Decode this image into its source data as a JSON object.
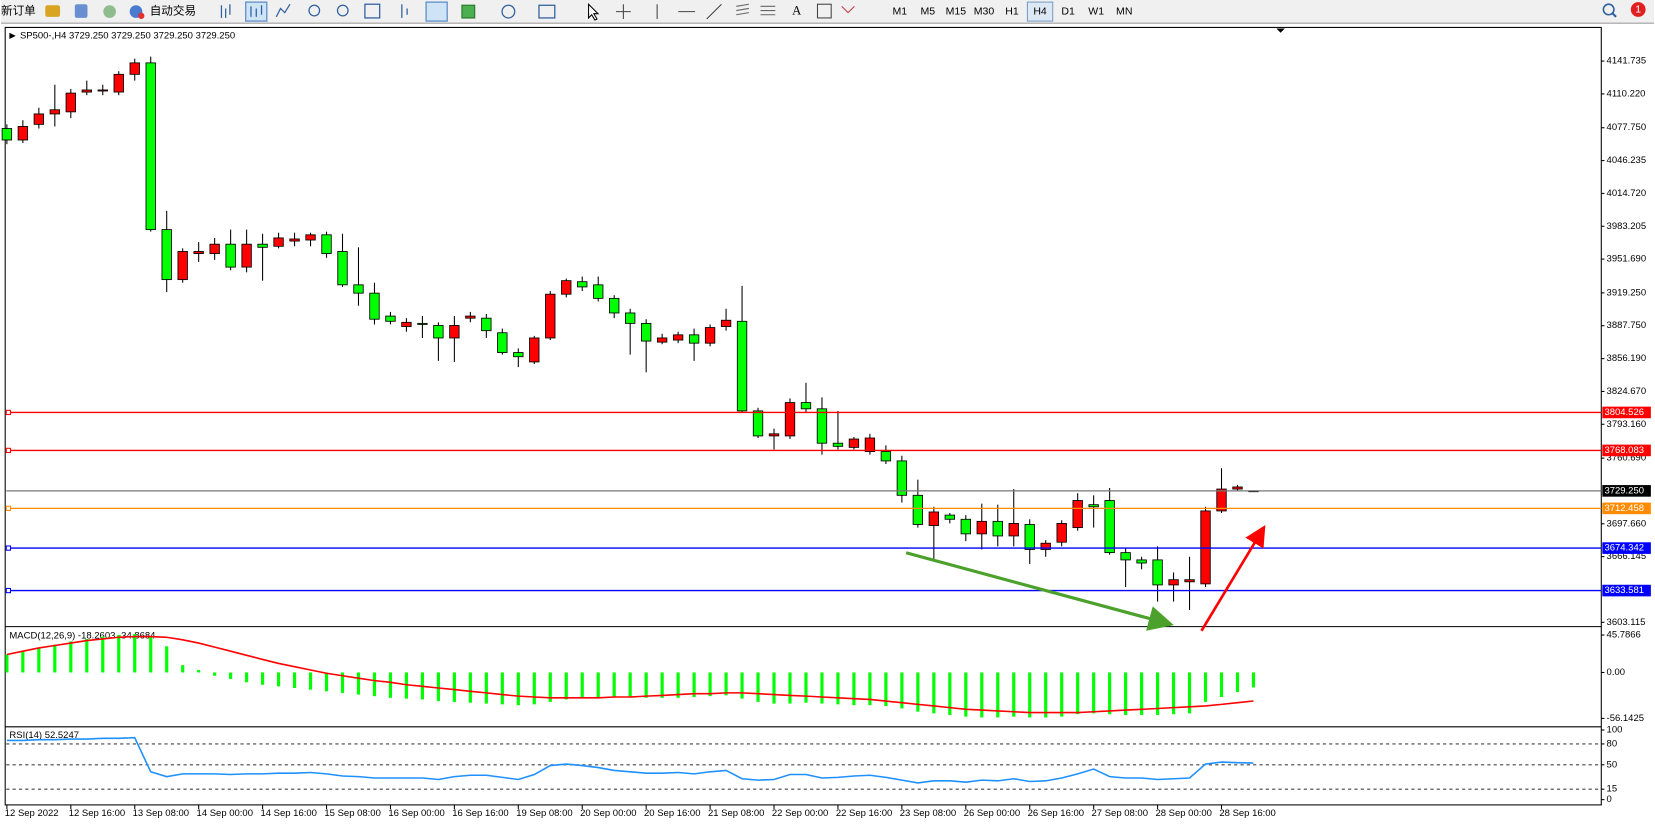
{
  "toolbar": {
    "new_order": "新订单",
    "auto_trading": "自动交易",
    "timeframes": [
      "M1",
      "M5",
      "M15",
      "M30",
      "H1",
      "H4",
      "D1",
      "W1",
      "MN"
    ],
    "active_timeframe": "H4",
    "notifications": "1"
  },
  "chart_data": [
    {
      "type": "candlestick",
      "title": "SP500-,H4 3729.250 3729.250 3729.250 3729.250",
      "categories": [
        "12 Sep 2022",
        null,
        null,
        null,
        "12 Sep 16:00",
        null,
        null,
        null,
        "13 Sep 08:00",
        null,
        null,
        null,
        "14 Sep 00:00",
        null,
        null,
        null,
        "14 Sep 16:00",
        null,
        null,
        null,
        "15 Sep 08:00",
        null,
        null,
        null,
        "16 Sep 00:00",
        null,
        null,
        null,
        "16 Sep 16:00",
        null,
        null,
        null,
        "19 Sep 08:00",
        null,
        null,
        null,
        "20 Sep 00:00",
        null,
        null,
        null,
        "20 Sep 16:00",
        null,
        null,
        null,
        "21 Sep 08:00",
        null,
        null,
        null,
        "22 Sep 00:00",
        null,
        null,
        null,
        "22 Sep 16:00",
        null,
        null,
        null,
        "23 Sep 08:00",
        null,
        null,
        null,
        "26 Sep 00:00",
        null,
        null,
        null,
        "26 Sep 16:00",
        null,
        null,
        null,
        "27 Sep 08:00",
        null,
        null,
        null,
        "28 Sep 00:00",
        null,
        null,
        null,
        "28 Sep 16:00",
        null,
        null
      ],
      "open": [
        4077,
        4066,
        4081,
        4091,
        4093,
        4112,
        4113,
        4112,
        4129,
        4140,
        3980,
        3932,
        3957,
        3957,
        3966,
        3944,
        3966,
        3964,
        3969,
        3970,
        3975,
        3959,
        3927,
        3919,
        3897,
        3887,
        3890,
        3888,
        3876,
        3895,
        3895,
        3881,
        3862,
        3853,
        3876,
        3918,
        3930,
        3927,
        3914,
        3900,
        3890,
        3872,
        3874,
        3879,
        3871,
        3887,
        3892,
        3806,
        3782,
        3782,
        3814,
        3808,
        3775,
        3771,
        3767,
        3767,
        3758,
        3725,
        3696,
        3706,
        3702,
        3688,
        3700,
        3686,
        3697,
        3673,
        3680,
        3694,
        3716,
        3720,
        3670,
        3663,
        3663,
        3639,
        3642,
        3640,
        3710,
        3731,
        3729.25
      ],
      "high": [
        4081,
        4085,
        4097,
        4119,
        4115,
        4123,
        4119,
        4132,
        4144,
        4146,
        3998,
        3962,
        3968,
        3972,
        3980,
        3980,
        3976,
        3977,
        3977,
        3977,
        3978,
        3976,
        3963,
        3929,
        3901,
        3895,
        3897,
        3891,
        3897,
        3901,
        3899,
        3885,
        3866,
        3878,
        3921,
        3933,
        3935,
        3935,
        3917,
        3904,
        3894,
        3880,
        3882,
        3885,
        3889,
        3904,
        3926,
        3809,
        3789,
        3818,
        3833,
        3819,
        3806,
        3781,
        3784,
        3773,
        3763,
        3740,
        3714,
        3708,
        3706,
        3717,
        3716,
        3731,
        3702,
        3682,
        3701,
        3727,
        3725,
        3732,
        3674,
        3666,
        3676,
        3651,
        3666,
        3714,
        3751,
        3735,
        3729.25
      ],
      "low": [
        4062,
        4063,
        4077,
        4079,
        4087,
        4109,
        4109,
        4109,
        4123,
        3978,
        3920,
        3929,
        3949,
        3951,
        3941,
        3939,
        3931,
        3962,
        3964,
        3964,
        3953,
        3925,
        3907,
        3889,
        3889,
        3882,
        3876,
        3854,
        3853,
        3891,
        3876,
        3860,
        3848,
        3851,
        3874,
        3915,
        3921,
        3911,
        3895,
        3860,
        3843,
        3870,
        3871,
        3854,
        3868,
        3883,
        3804,
        3780,
        3769,
        3779,
        3804,
        3764,
        3769,
        3769,
        3764,
        3755,
        3718,
        3694,
        3662,
        3698,
        3681,
        3673,
        3676,
        3676,
        3659,
        3666,
        3676,
        3691,
        3694,
        3668,
        3637,
        3654,
        3623,
        3623,
        3615,
        3637,
        3708,
        3729,
        3729.25
      ],
      "close": [
        4066,
        4079,
        4091,
        4095,
        4111,
        4114,
        4114,
        4129,
        4140,
        3980,
        3932,
        3959,
        3959,
        3966,
        3944,
        3966,
        3963,
        3972,
        3971,
        3975,
        3957,
        3927,
        3919,
        3894,
        3892,
        3891,
        3889,
        3876,
        3888,
        3897,
        3883,
        3862,
        3858,
        3876,
        3918,
        3931,
        3925,
        3914,
        3900,
        3890,
        3873,
        3876,
        3879,
        3871,
        3886,
        3893,
        3806,
        3782,
        3784,
        3814,
        3808,
        3775,
        3772,
        3779,
        3780,
        3758,
        3725,
        3697,
        3709,
        3702,
        3688,
        3700,
        3686,
        3698,
        3673,
        3679,
        3698,
        3720,
        3714,
        3670,
        3663,
        3660,
        3639,
        3644,
        3644,
        3710,
        3731,
        3733,
        3729.25
      ],
      "up_color": "#ff0000",
      "down_color": "#00ff00",
      "ylim": [
        3601,
        4172
      ],
      "yticks": [
        4141.735,
        {
          "value": 4110.22,
          "label": "4110.220"
        },
        {
          "value": 4077.75,
          "label": "4077.750"
        },
        4046.235,
        {
          "value": 4014.72,
          "label": "4014.720"
        },
        3983.205,
        {
          "value": 3951.69,
          "label": "3951.690"
        },
        {
          "value": 3919.25,
          "label": "3919.250"
        },
        {
          "value": 3887.75,
          "label": "3887.750"
        },
        {
          "value": 3856.19,
          "label": "3856.190"
        },
        {
          "value": 3824.67,
          "label": "3824.670"
        },
        {
          "value": 3793.16,
          "label": "3793.160"
        },
        {
          "value": 3760.69,
          "label": "3760.690"
        },
        {
          "value": 3697.66,
          "label": "3697.660"
        },
        3666.145,
        3603.115
      ],
      "levels": [
        {
          "value": 3804.526,
          "color": "#ff0000"
        },
        {
          "value": 3768.083,
          "color": "#ff0000"
        },
        {
          "value": 3729.25,
          "label": "3729.250",
          "color": "#000000"
        },
        {
          "value": 3712.458,
          "color": "#ff8c00"
        },
        {
          "value": 3674.342,
          "color": "#0000ff"
        },
        {
          "value": 3633.581,
          "color": "#0000ff"
        }
      ]
    },
    {
      "type": "macd",
      "title": "MACD(12,26,9) -18.2603 -34.8684",
      "series": [
        {
          "style": "histogram",
          "color": "#00ff00",
          "values": [
            22,
            26,
            30,
            34,
            38,
            41,
            44,
            46,
            47,
            44,
            32,
            9,
            3,
            -4,
            -8,
            -12,
            -15,
            -17,
            -19,
            -21,
            -23,
            -25,
            -27,
            -29,
            -31,
            -32,
            -33,
            -35,
            -36,
            -37,
            -38,
            -39,
            -40,
            -39,
            -36,
            -33,
            -31,
            -30,
            -30,
            -30,
            -31,
            -31,
            -31,
            -30,
            -29,
            -28,
            -32,
            -36,
            -38,
            -38,
            -37,
            -38,
            -39,
            -40,
            -40,
            -41,
            -44,
            -48,
            -50,
            -52,
            -54,
            -55,
            -55,
            -54,
            -55,
            -55,
            -54,
            -51,
            -50,
            -51,
            -52,
            -52,
            -52,
            -51,
            -50,
            -36,
            -30,
            -24,
            -18.2603
          ]
        },
        {
          "style": "line",
          "color": "#ff0000",
          "values": [
            22,
            26,
            30,
            33,
            36,
            39,
            41,
            43,
            44,
            44,
            43,
            40,
            36,
            31,
            26,
            21,
            16,
            11,
            7,
            3,
            -1,
            -4,
            -7,
            -10,
            -12,
            -15,
            -17,
            -19,
            -21,
            -23,
            -25,
            -27,
            -29,
            -30,
            -31,
            -31,
            -31,
            -31,
            -30,
            -30,
            -29,
            -28,
            -27,
            -26,
            -26,
            -25,
            -25,
            -26,
            -27,
            -28,
            -29,
            -30,
            -31,
            -32,
            -33,
            -35,
            -37,
            -39,
            -41,
            -43,
            -45,
            -46,
            -47,
            -48,
            -49,
            -49,
            -49,
            -49,
            -48,
            -47,
            -46,
            -45,
            -44,
            -43,
            -42,
            -41,
            -39,
            -37,
            -34.8684
          ]
        }
      ],
      "ylim": [
        -63.9,
        53.5
      ],
      "yticks": [
        45.7866,
        {
          "value": 0,
          "label": "0.00"
        },
        -56.1425
      ]
    },
    {
      "type": "rsi",
      "title": "RSI(14) 52.5247",
      "series": [
        {
          "style": "line",
          "color": "#1e90ff",
          "values": [
            85,
            85,
            86,
            86,
            87,
            87,
            88,
            88,
            89,
            40,
            33,
            37,
            37,
            37,
            36,
            37,
            37,
            38,
            38,
            39,
            37,
            34,
            33,
            31,
            31,
            31,
            31,
            29,
            33,
            35,
            35,
            32,
            29,
            36,
            49,
            51,
            49,
            46,
            42,
            40,
            38,
            38,
            39,
            37,
            40,
            42,
            30,
            28,
            29,
            36,
            36,
            31,
            32,
            34,
            35,
            32,
            28,
            24,
            27,
            27,
            25,
            28,
            27,
            30,
            26,
            27,
            31,
            37,
            44,
            33,
            31,
            31,
            29,
            30,
            31,
            51,
            54,
            53,
            52.5247
          ]
        }
      ],
      "ylim": [
        0,
        100
      ],
      "yticks": [
        100,
        80,
        50,
        15,
        0
      ],
      "levels": [
        80,
        50,
        15
      ]
    }
  ]
}
